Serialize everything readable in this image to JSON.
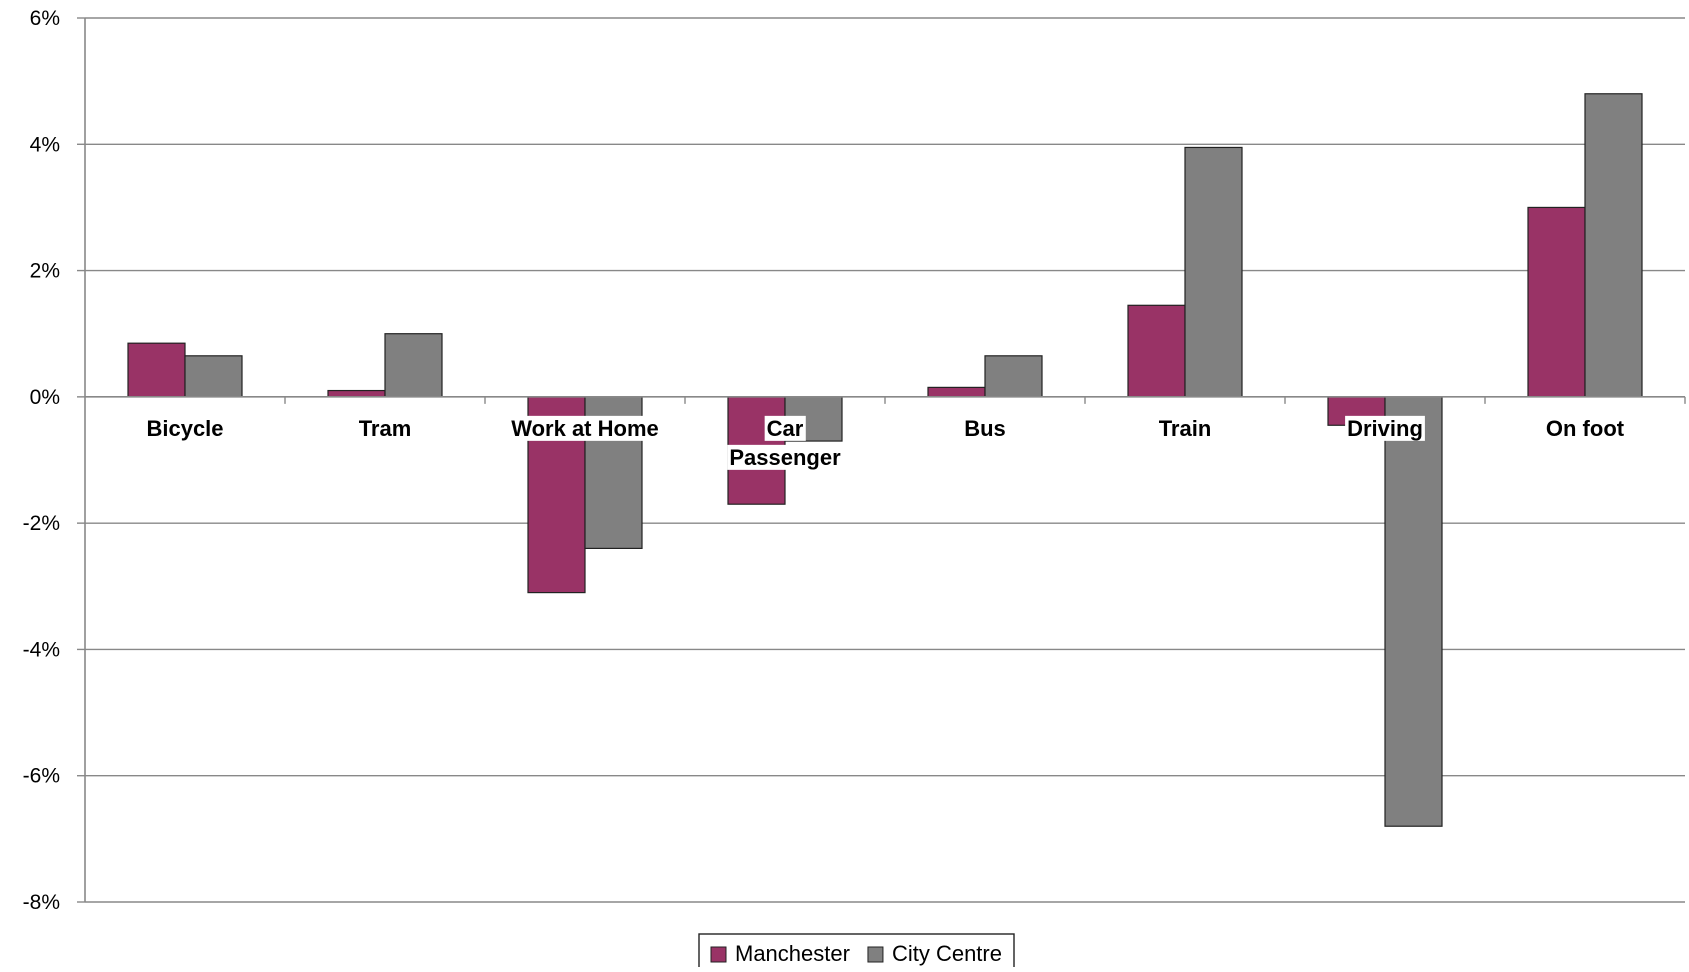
{
  "chart_data": {
    "type": "bar",
    "title": "",
    "xlabel": "",
    "ylabel": "",
    "categories": [
      "Bicycle",
      "Tram",
      "Work at Home",
      "Car Passenger",
      "Bus",
      "Train",
      "Driving",
      "On foot"
    ],
    "category_label_lines": [
      [
        "Bicycle"
      ],
      [
        "Tram"
      ],
      [
        "Work at Home"
      ],
      [
        "Car",
        "Passenger"
      ],
      [
        "Bus"
      ],
      [
        "Train"
      ],
      [
        "Driving"
      ],
      [
        "On foot"
      ]
    ],
    "series": [
      {
        "name": "Manchester",
        "values": [
          0.85,
          0.1,
          -3.1,
          -1.7,
          0.15,
          1.45,
          -0.45,
          3.0
        ]
      },
      {
        "name": "City Centre",
        "values": [
          0.65,
          1.0,
          -2.4,
          -0.7,
          0.65,
          3.95,
          -6.8,
          4.8
        ]
      }
    ],
    "ylim": [
      -8,
      6
    ],
    "yticks": [
      6,
      4,
      2,
      0,
      -2,
      -4,
      -6,
      -8
    ],
    "ytick_labels": [
      "6%",
      "4%",
      "2%",
      "0%",
      "-2%",
      "-4%",
      "-6%",
      "-8%"
    ],
    "grid": true,
    "legend_position": "bottom",
    "colors": {
      "Manchester": "#993366",
      "City Centre": "#808080",
      "grid": "#888888",
      "axis": "#888888"
    }
  }
}
